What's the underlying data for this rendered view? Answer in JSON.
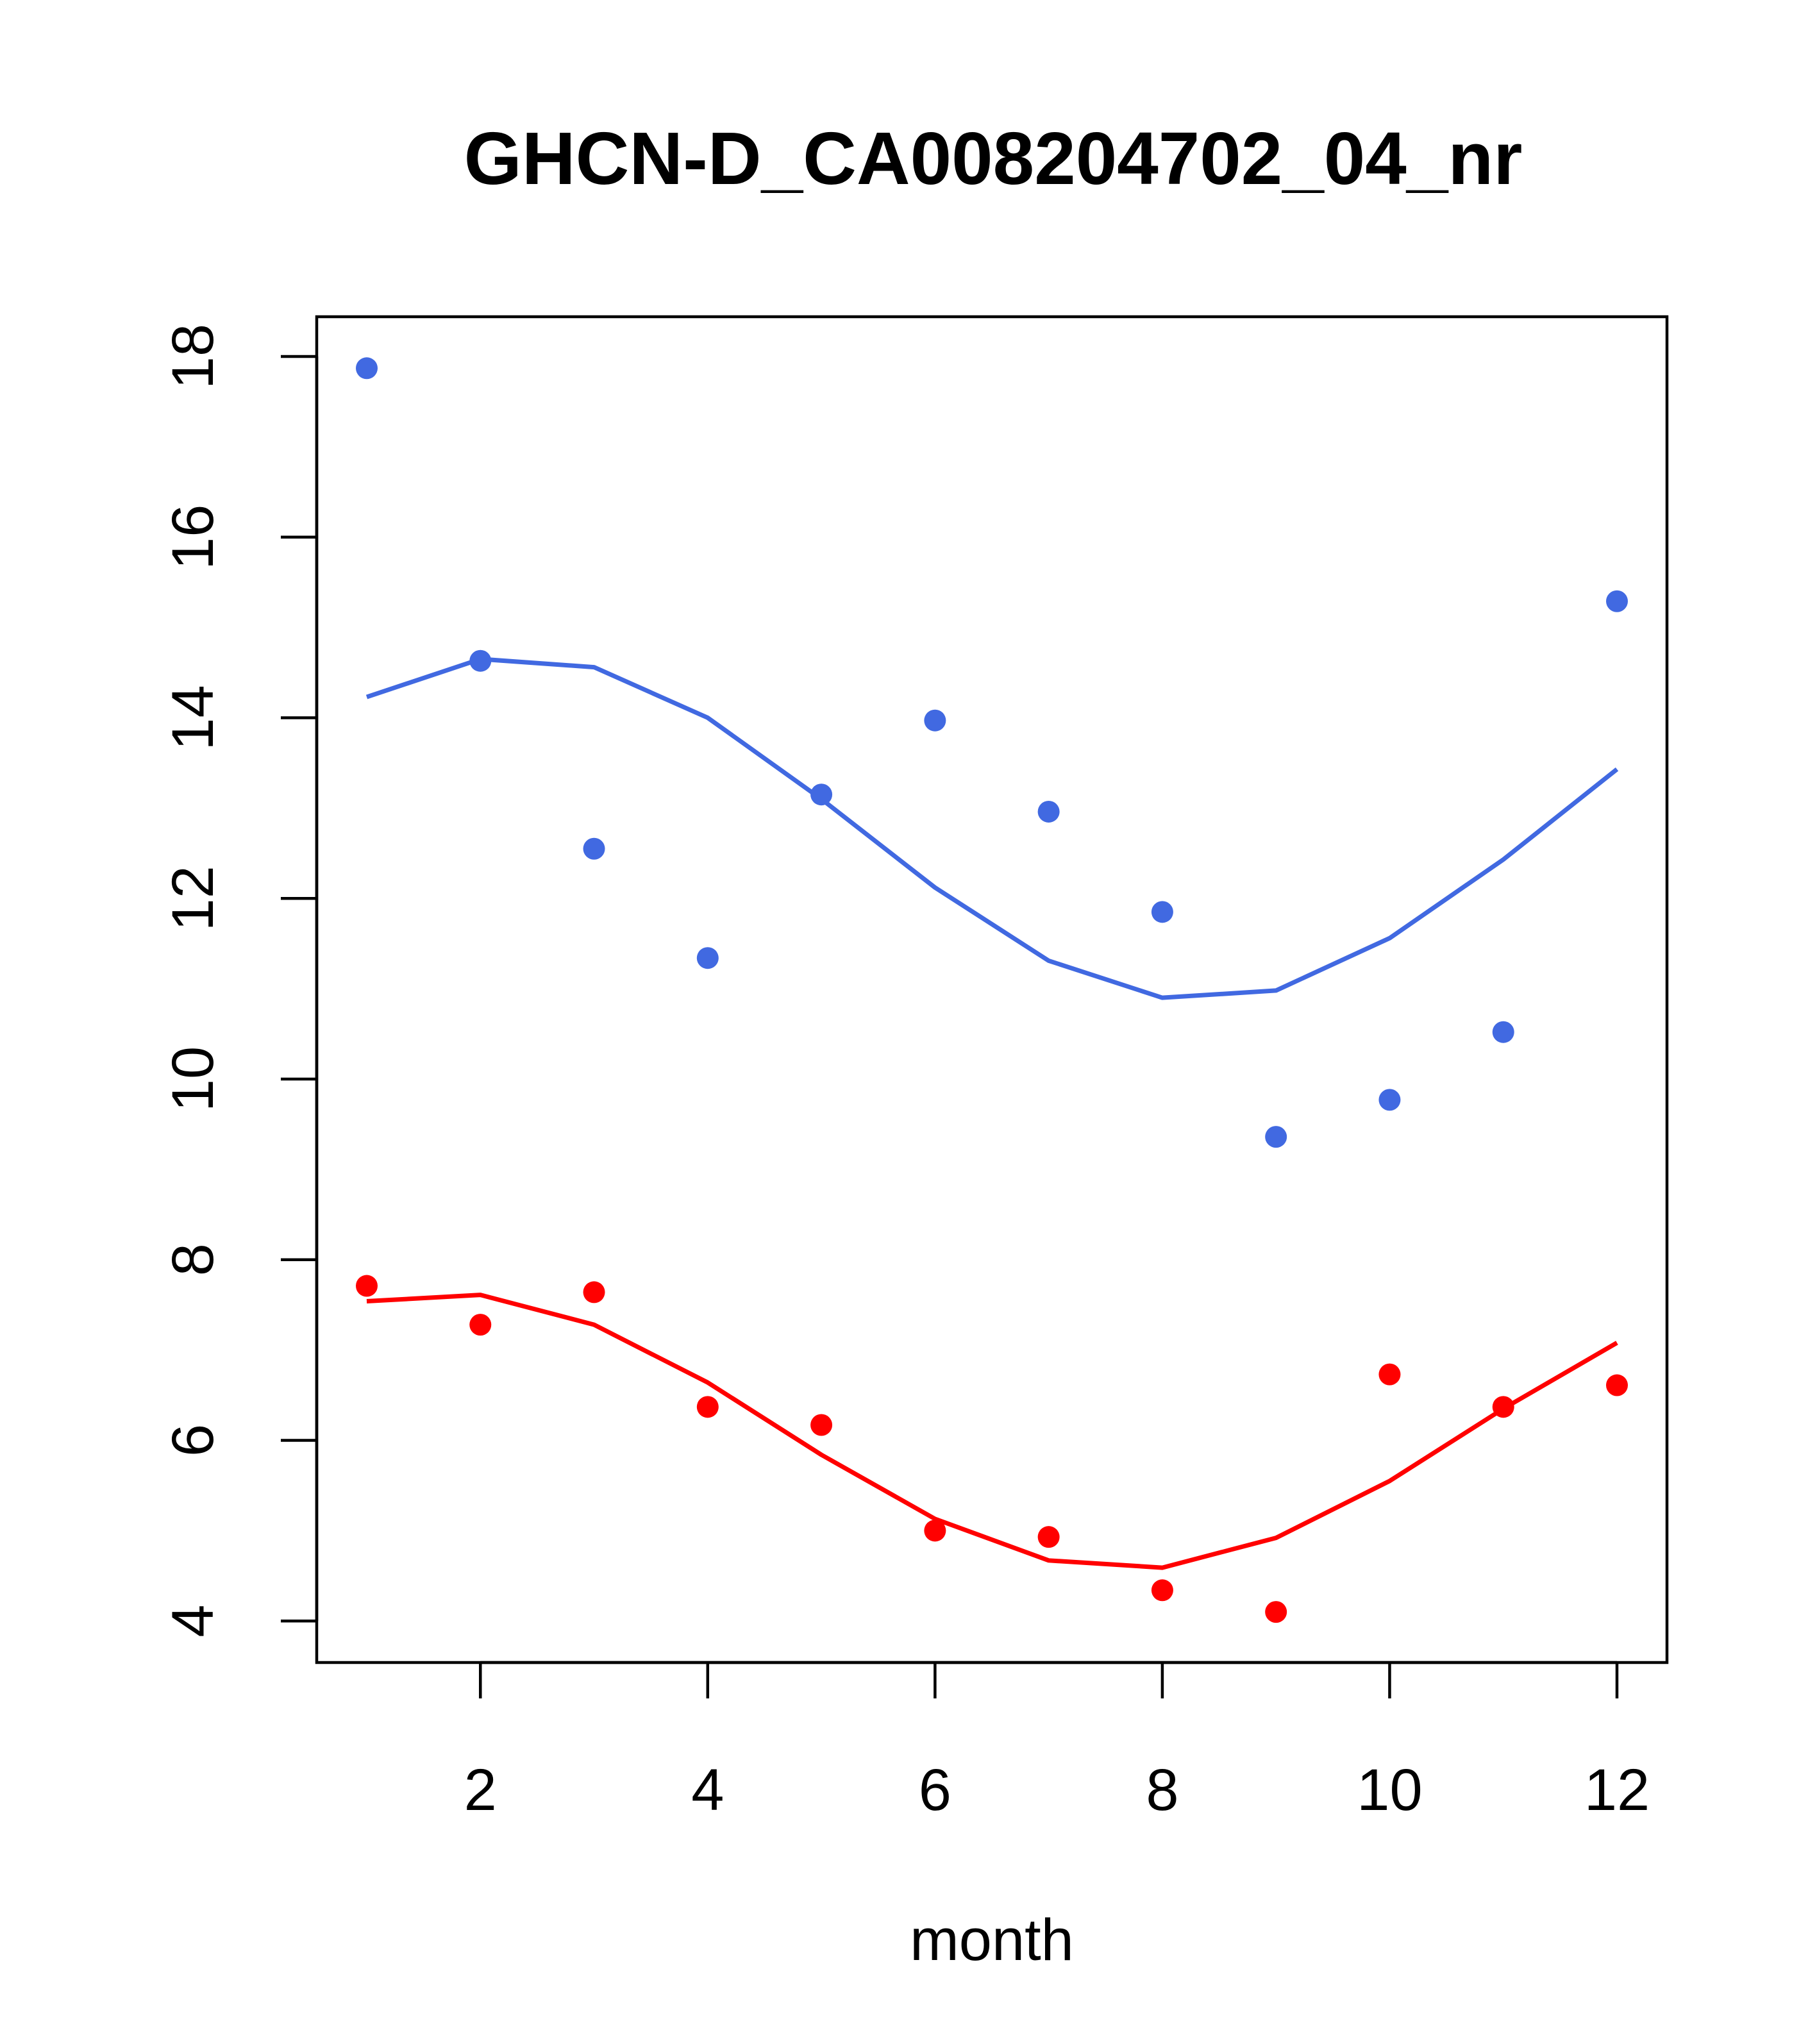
{
  "chart_data": {
    "type": "scatter",
    "title": "GHCN-D_CA008204702_04_nr",
    "xlabel": "month",
    "ylabel": "",
    "xlim": [
      0.56,
      12.44
    ],
    "ylim": [
      3.54,
      18.44
    ],
    "xticks": [
      2,
      4,
      6,
      8,
      10,
      12
    ],
    "yticks": [
      4,
      6,
      8,
      10,
      12,
      14,
      16,
      18
    ],
    "grid": false,
    "x": [
      1,
      2,
      3,
      4,
      5,
      6,
      7,
      8,
      9,
      10,
      11,
      12
    ],
    "series": [
      {
        "color": "#4169e1",
        "points": [
          17.87,
          14.63,
          12.55,
          11.34,
          13.15,
          13.97,
          12.96,
          11.85,
          9.36,
          9.77,
          10.52,
          15.29
        ],
        "line": [
          14.23,
          14.65,
          14.56,
          14.0,
          13.1,
          12.12,
          11.31,
          10.9,
          10.98,
          11.56,
          12.43,
          13.43
        ]
      },
      {
        "color": "#ff0000",
        "points": [
          7.71,
          7.28,
          7.64,
          6.37,
          6.17,
          5.0,
          4.93,
          4.34,
          4.1,
          6.73,
          6.37,
          6.61
        ],
        "line": [
          7.54,
          7.61,
          7.28,
          6.64,
          5.84,
          5.13,
          4.67,
          4.59,
          4.92,
          5.55,
          6.35,
          7.08
        ]
      }
    ]
  }
}
